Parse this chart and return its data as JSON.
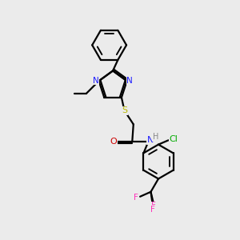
{
  "background_color": "#ebebeb",
  "line_color": "black",
  "line_width": 1.6,
  "fig_size": [
    3.0,
    3.0
  ],
  "dpi": 100,
  "atoms": {
    "N_blue": "#1a1aff",
    "S_yellow": "#b8b800",
    "O_red": "#cc0000",
    "Cl_green": "#00aa00",
    "F_pink": "#ff33bb",
    "H_gray": "#888888",
    "C_black": "#000000"
  },
  "xlim": [
    0,
    10
  ],
  "ylim": [
    0,
    10
  ]
}
